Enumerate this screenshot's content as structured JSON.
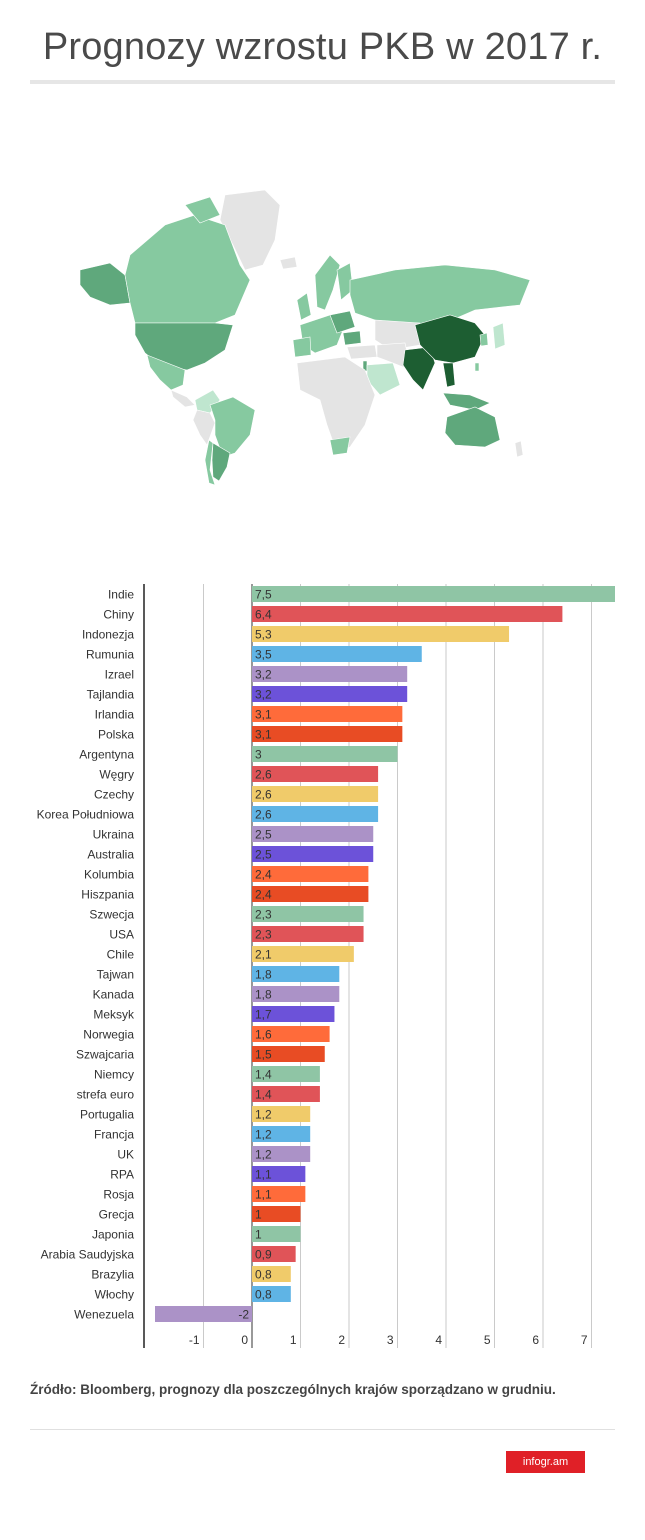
{
  "title": "Prognozy wzrostu PKB w 2017 r.",
  "map": {
    "colors": {
      "no_data": "#e4e4e4",
      "low": "#bfe6cf",
      "mid": "#86c9a0",
      "high": "#5fa87c",
      "top": "#1d5e32"
    }
  },
  "chart_data": {
    "type": "bar",
    "orientation": "horizontal",
    "title": "",
    "xlabel": "",
    "ylabel": "",
    "xlim": [
      -2,
      7.5
    ],
    "xticks": [
      "-1",
      "0",
      "1",
      "2",
      "3",
      "4",
      "5",
      "6",
      "7"
    ],
    "grid": true,
    "categories": [
      "Indie",
      "Chiny",
      "Indonezja",
      "Rumunia",
      "Izrael",
      "Tajlandia",
      "Irlandia",
      "Polska",
      "Argentyna",
      "Węgry",
      "Czechy",
      "Korea Południowa",
      "Ukraina",
      "Australia",
      "Kolumbia",
      "Hiszpania",
      "Szwecja",
      "USA",
      "Chile",
      "Tajwan",
      "Kanada",
      "Meksyk",
      "Norwegia",
      "Szwajcaria",
      "Niemcy",
      "strefa euro",
      "Portugalia",
      "Francja",
      "UK",
      "RPA",
      "Rosja",
      "Grecja",
      "Japonia",
      "Arabia Saudyjska",
      "Brazylia",
      "Włochy",
      "Wenezuela"
    ],
    "values": [
      7.5,
      6.4,
      5.3,
      3.5,
      3.2,
      3.2,
      3.1,
      3.1,
      3,
      2.6,
      2.6,
      2.6,
      2.5,
      2.5,
      2.4,
      2.4,
      2.3,
      2.3,
      2.1,
      1.8,
      1.8,
      1.7,
      1.6,
      1.5,
      1.4,
      1.4,
      1.2,
      1.2,
      1.2,
      1.1,
      1.1,
      1,
      1,
      0.9,
      0.8,
      0.8,
      -2
    ],
    "value_labels": [
      "7,5",
      "6,4",
      "5,3",
      "3,5",
      "3,2",
      "3,2",
      "3,1",
      "3,1",
      "3",
      "2,6",
      "2,6",
      "2,6",
      "2,5",
      "2,5",
      "2,4",
      "2,4",
      "2,3",
      "2,3",
      "2,1",
      "1,8",
      "1,8",
      "1,7",
      "1,6",
      "1,5",
      "1,4",
      "1,4",
      "1,2",
      "1,2",
      "1,2",
      "1,1",
      "1,1",
      "1",
      "1",
      "0,9",
      "0,8",
      "0,8",
      "-2"
    ],
    "palette": [
      "#8fc5a5",
      "#e05458",
      "#f0cb6a",
      "#5fb4e5",
      "#ab92c7",
      "#6c52d9",
      "#ff6b3a",
      "#e84c24"
    ]
  },
  "source": "Źródło: Bloomberg, prognozy dla poszczególnych krajów sporządzano w grudniu.",
  "brand": "infogr.am"
}
